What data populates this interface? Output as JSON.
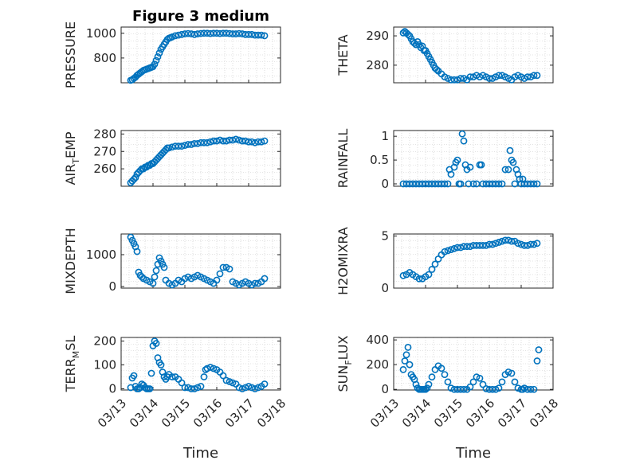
{
  "figure": {
    "title": "Figure 3 medium",
    "marker_color": "#0072bd"
  },
  "chart_data": [
    {
      "id": "pressure",
      "type": "scatter",
      "ylabel": "PRESSURE",
      "ylabel_sub": "",
      "xlim": [
        0,
        5
      ],
      "ylim": [
        600,
        1050
      ],
      "yticks": [
        800,
        1000
      ],
      "xticks": [],
      "xlabel": "",
      "title": "Figure 3 medium",
      "x": [
        0.3,
        0.35,
        0.4,
        0.45,
        0.5,
        0.55,
        0.6,
        0.65,
        0.7,
        0.75,
        0.8,
        0.85,
        0.9,
        0.95,
        1.0,
        1.05,
        1.1,
        1.15,
        1.2,
        1.25,
        1.3,
        1.35,
        1.4,
        1.45,
        1.5,
        1.55,
        1.6,
        1.7,
        1.8,
        1.9,
        2.0,
        2.1,
        2.2,
        2.3,
        2.4,
        2.5,
        2.6,
        2.7,
        2.8,
        2.9,
        3.0,
        3.1,
        3.2,
        3.3,
        3.4,
        3.5,
        3.6,
        3.7,
        3.8,
        3.9,
        4.0,
        4.1,
        4.2,
        4.3,
        4.4,
        4.5
      ],
      "y": [
        620,
        625,
        635,
        645,
        660,
        670,
        680,
        690,
        700,
        705,
        710,
        715,
        720,
        725,
        730,
        750,
        780,
        810,
        840,
        870,
        890,
        910,
        930,
        950,
        960,
        965,
        970,
        980,
        985,
        990,
        995,
        998,
        995,
        990,
        995,
        998,
        1000,
        1000,
        998,
        1000,
        1000,
        998,
        1000,
        1000,
        998,
        995,
        995,
        998,
        995,
        990,
        990,
        990,
        985,
        985,
        985,
        980
      ]
    },
    {
      "id": "theta",
      "type": "scatter",
      "ylabel": "THETA",
      "ylabel_sub": "",
      "xlim": [
        0,
        5
      ],
      "ylim": [
        274,
        293
      ],
      "yticks": [
        280,
        290
      ],
      "xticks": [],
      "xlabel": "",
      "x": [
        0.3,
        0.35,
        0.4,
        0.45,
        0.5,
        0.55,
        0.6,
        0.65,
        0.7,
        0.75,
        0.8,
        0.85,
        0.9,
        0.95,
        1.0,
        1.05,
        1.1,
        1.15,
        1.2,
        1.25,
        1.3,
        1.35,
        1.4,
        1.5,
        1.6,
        1.7,
        1.8,
        1.9,
        2.0,
        2.1,
        2.2,
        2.3,
        2.4,
        2.5,
        2.6,
        2.7,
        2.8,
        2.9,
        3.0,
        3.1,
        3.2,
        3.3,
        3.4,
        3.5,
        3.6,
        3.7,
        3.8,
        3.9,
        4.0,
        4.1,
        4.2,
        4.3,
        4.4,
        4.5
      ],
      "y": [
        291,
        291.5,
        291,
        290.5,
        290,
        289,
        288,
        287.5,
        287,
        288,
        287,
        286,
        286.5,
        285,
        285,
        284,
        283,
        282,
        281,
        280,
        279,
        278.5,
        278,
        277,
        276,
        275.5,
        275,
        275,
        275,
        275.5,
        275.5,
        275,
        276,
        276,
        276.5,
        276,
        276.5,
        276,
        275.5,
        275.5,
        276,
        276.5,
        276.5,
        276,
        275.5,
        275,
        276,
        276.5,
        276,
        275.5,
        276,
        276,
        276.5,
        276.5
      ]
    },
    {
      "id": "air_temp",
      "type": "scatter",
      "ylabel": "AIR",
      "ylabel_sub": "T",
      "ylabel_tail": "EMP",
      "xlim": [
        0,
        5
      ],
      "ylim": [
        250,
        282
      ],
      "yticks": [
        260,
        270,
        280
      ],
      "xticks": [],
      "xlabel": "",
      "x": [
        0.3,
        0.35,
        0.4,
        0.45,
        0.5,
        0.55,
        0.6,
        0.65,
        0.7,
        0.75,
        0.8,
        0.85,
        0.9,
        0.95,
        1.0,
        1.05,
        1.1,
        1.15,
        1.2,
        1.25,
        1.3,
        1.35,
        1.4,
        1.45,
        1.5,
        1.6,
        1.7,
        1.8,
        1.9,
        2.0,
        2.1,
        2.2,
        2.3,
        2.4,
        2.5,
        2.6,
        2.7,
        2.8,
        2.9,
        3.0,
        3.1,
        3.2,
        3.3,
        3.4,
        3.5,
        3.6,
        3.7,
        3.8,
        3.9,
        4.0,
        4.1,
        4.2,
        4.3,
        4.4,
        4.5
      ],
      "y": [
        252,
        253,
        254,
        255,
        257,
        258,
        259,
        260,
        260,
        261,
        261,
        262,
        262,
        263,
        263,
        264,
        265,
        266,
        267,
        268,
        269,
        270,
        271,
        272,
        272,
        272.5,
        273,
        273,
        273,
        273.5,
        274,
        274,
        274.5,
        274.5,
        275,
        275,
        275,
        275.5,
        276,
        276,
        276.5,
        276,
        276,
        276.5,
        276.5,
        277,
        276.5,
        276,
        276,
        275.5,
        275.5,
        275,
        275.5,
        275.5,
        276
      ]
    },
    {
      "id": "rainfall",
      "type": "scatter",
      "ylabel": "RAINFALL",
      "ylabel_sub": "",
      "xlim": [
        0,
        5
      ],
      "ylim": [
        -0.05,
        1.12
      ],
      "yticks": [
        0,
        0.5,
        1
      ],
      "xticks": [],
      "xlabel": "",
      "x": [
        0.3,
        0.4,
        0.5,
        0.6,
        0.7,
        0.8,
        0.9,
        1.0,
        1.1,
        1.2,
        1.3,
        1.4,
        1.5,
        1.6,
        1.7,
        1.75,
        1.8,
        1.9,
        1.95,
        2.0,
        2.05,
        2.1,
        2.15,
        2.2,
        2.25,
        2.3,
        2.35,
        2.4,
        2.5,
        2.6,
        2.7,
        2.75,
        2.8,
        2.9,
        3.0,
        3.1,
        3.2,
        3.3,
        3.4,
        3.5,
        3.6,
        3.65,
        3.7,
        3.75,
        3.8,
        3.85,
        3.9,
        3.95,
        4.0,
        4.05,
        4.1,
        4.2,
        4.3,
        4.4,
        4.5
      ],
      "y": [
        0,
        0,
        0,
        0,
        0,
        0,
        0,
        0,
        0,
        0,
        0,
        0,
        0,
        0,
        0,
        0.3,
        0.2,
        0.35,
        0.45,
        0.5,
        0,
        0,
        1.05,
        0.9,
        0.4,
        0.3,
        0,
        0.35,
        0,
        0,
        0.4,
        0.4,
        0,
        0,
        0,
        0,
        0,
        0,
        0,
        0.3,
        0.3,
        0.7,
        0.5,
        0.45,
        0,
        0.3,
        0.2,
        0.1,
        0,
        0.1,
        0,
        0,
        0,
        0,
        0
      ]
    },
    {
      "id": "mixdepth",
      "type": "scatter",
      "ylabel": "MIXDEPTH",
      "ylabel_sub": "",
      "xlim": [
        0,
        5
      ],
      "ylim": [
        -50,
        1650
      ],
      "yticks": [
        0,
        1000
      ],
      "xticks": [],
      "xlabel": "",
      "x": [
        0.3,
        0.35,
        0.4,
        0.45,
        0.5,
        0.55,
        0.6,
        0.65,
        0.7,
        0.8,
        0.9,
        1.0,
        1.05,
        1.1,
        1.15,
        1.2,
        1.25,
        1.3,
        1.35,
        1.4,
        1.5,
        1.6,
        1.7,
        1.8,
        1.9,
        2.0,
        2.1,
        2.2,
        2.3,
        2.4,
        2.5,
        2.6,
        2.7,
        2.8,
        2.9,
        3.0,
        3.1,
        3.2,
        3.3,
        3.4,
        3.5,
        3.6,
        3.7,
        3.8,
        3.9,
        4.0,
        4.1,
        4.2,
        4.3,
        4.4,
        4.5
      ],
      "y": [
        1550,
        1450,
        1350,
        1250,
        1100,
        450,
        350,
        300,
        250,
        200,
        150,
        100,
        300,
        500,
        700,
        900,
        800,
        700,
        600,
        200,
        100,
        50,
        100,
        200,
        150,
        250,
        300,
        250,
        300,
        350,
        300,
        250,
        200,
        150,
        100,
        200,
        400,
        600,
        600,
        550,
        150,
        100,
        50,
        100,
        150,
        100,
        50,
        100,
        100,
        150,
        250
      ]
    },
    {
      "id": "h2omixra",
      "type": "scatter",
      "ylabel": "H2OMIXRA",
      "ylabel_sub": "",
      "xlim": [
        0,
        5
      ],
      "ylim": [
        0,
        5.2
      ],
      "yticks": [
        0,
        5
      ],
      "xticks": [],
      "xlabel": "",
      "x": [
        0.3,
        0.4,
        0.5,
        0.6,
        0.7,
        0.8,
        0.9,
        1.0,
        1.1,
        1.2,
        1.3,
        1.4,
        1.5,
        1.6,
        1.7,
        1.8,
        1.9,
        2.0,
        2.1,
        2.2,
        2.3,
        2.4,
        2.5,
        2.6,
        2.7,
        2.8,
        2.9,
        3.0,
        3.1,
        3.2,
        3.3,
        3.4,
        3.5,
        3.6,
        3.7,
        3.8,
        3.9,
        4.0,
        4.1,
        4.2,
        4.3,
        4.4,
        4.5
      ],
      "y": [
        1.2,
        1.3,
        1.5,
        1.3,
        1.1,
        0.9,
        0.9,
        1.1,
        1.3,
        1.8,
        2.3,
        2.8,
        3.2,
        3.5,
        3.6,
        3.7,
        3.8,
        3.9,
        3.9,
        4.0,
        4.0,
        4.0,
        4.1,
        4.1,
        4.1,
        4.1,
        4.1,
        4.2,
        4.2,
        4.3,
        4.4,
        4.5,
        4.6,
        4.6,
        4.5,
        4.5,
        4.3,
        4.2,
        4.1,
        4.1,
        4.2,
        4.2,
        4.3
      ]
    },
    {
      "id": "terr_msl",
      "type": "scatter",
      "ylabel": "TERR",
      "ylabel_sub": "M",
      "ylabel_tail": "SL",
      "xlim": [
        0,
        5
      ],
      "ylim": [
        -5,
        215
      ],
      "yticks": [
        0,
        100,
        200
      ],
      "xticks": [
        "03/13",
        "03/14",
        "03/15",
        "03/16",
        "03/17",
        "03/18"
      ],
      "xlabel": "Time",
      "x": [
        0.3,
        0.35,
        0.4,
        0.45,
        0.5,
        0.55,
        0.6,
        0.65,
        0.7,
        0.75,
        0.8,
        0.85,
        0.9,
        0.95,
        1.0,
        1.05,
        1.1,
        1.15,
        1.2,
        1.25,
        1.3,
        1.35,
        1.4,
        1.45,
        1.5,
        1.6,
        1.7,
        1.8,
        1.9,
        2.0,
        2.1,
        2.2,
        2.3,
        2.4,
        2.5,
        2.6,
        2.65,
        2.7,
        2.8,
        2.9,
        3.0,
        3.1,
        3.2,
        3.3,
        3.4,
        3.5,
        3.6,
        3.7,
        3.8,
        3.9,
        4.0,
        4.1,
        4.2,
        4.3,
        4.4,
        4.5
      ],
      "y": [
        5,
        45,
        55,
        10,
        0,
        0,
        5,
        20,
        15,
        5,
        0,
        0,
        0,
        65,
        180,
        200,
        190,
        130,
        110,
        100,
        70,
        50,
        40,
        50,
        60,
        50,
        50,
        40,
        25,
        5,
        5,
        0,
        0,
        5,
        10,
        50,
        80,
        85,
        90,
        85,
        80,
        70,
        55,
        35,
        30,
        25,
        20,
        5,
        0,
        5,
        10,
        5,
        0,
        5,
        10,
        20
      ]
    },
    {
      "id": "sun_flux",
      "type": "scatter",
      "ylabel": "SUN",
      "ylabel_sub": "F",
      "ylabel_tail": "LUX",
      "xlim": [
        0,
        5
      ],
      "ylim": [
        -5,
        420
      ],
      "yticks": [
        0,
        200,
        400
      ],
      "xticks": [
        "03/13",
        "03/14",
        "03/15",
        "03/16",
        "03/17",
        "03/18"
      ],
      "xlabel": "Time",
      "x": [
        0.3,
        0.35,
        0.4,
        0.45,
        0.5,
        0.55,
        0.6,
        0.65,
        0.7,
        0.75,
        0.8,
        0.85,
        0.9,
        0.95,
        1.0,
        1.05,
        1.1,
        1.2,
        1.3,
        1.4,
        1.5,
        1.6,
        1.7,
        1.8,
        1.9,
        2.0,
        2.1,
        2.2,
        2.3,
        2.4,
        2.5,
        2.6,
        2.7,
        2.8,
        2.9,
        3.0,
        3.1,
        3.2,
        3.3,
        3.4,
        3.5,
        3.6,
        3.7,
        3.8,
        3.9,
        4.0,
        4.05,
        4.1,
        4.2,
        4.3,
        4.4,
        4.5,
        4.55
      ],
      "y": [
        160,
        230,
        280,
        340,
        200,
        120,
        100,
        80,
        40,
        10,
        0,
        0,
        0,
        0,
        0,
        10,
        40,
        100,
        160,
        190,
        170,
        120,
        60,
        10,
        0,
        0,
        0,
        0,
        0,
        20,
        60,
        100,
        90,
        40,
        5,
        0,
        0,
        0,
        10,
        60,
        120,
        140,
        130,
        60,
        10,
        0,
        0,
        10,
        0,
        0,
        0,
        230,
        320
      ]
    }
  ]
}
